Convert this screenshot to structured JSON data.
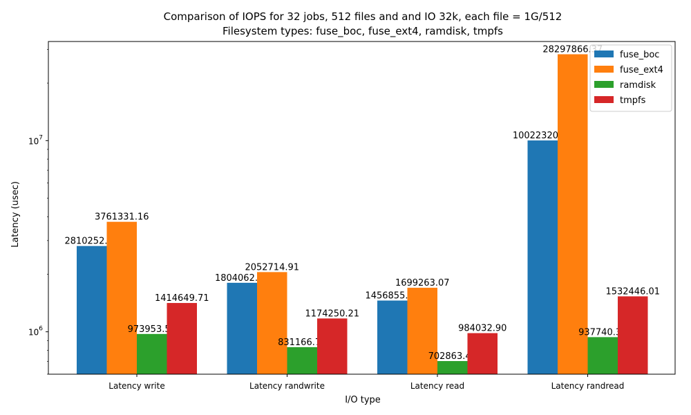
{
  "chart_data": {
    "type": "bar",
    "title": "Comparison of IOPS for 32 jobs, 512 files and  and IO 32k, each file = 1G/512",
    "subtitle": "Filesystem types: fuse_boc, fuse_ext4, ramdisk, tmpfs",
    "xlabel": "I/O type",
    "ylabel": "Latency (usec)",
    "yscale": "log",
    "ylim": [
      600000,
      33000000
    ],
    "y_tick_labels": [
      "10^6",
      "10^7"
    ],
    "grid": false,
    "legend_position": "top-right",
    "categories": [
      "Latency write",
      "Latency randwrite",
      "Latency read",
      "Latency randread"
    ],
    "series": [
      {
        "name": "fuse_boc",
        "color": "#1f77b4",
        "values": [
          2810252.43,
          1804062.43,
          1456855.61,
          10022320.74
        ],
        "labels": [
          "2810252.43",
          "1804062.43",
          "1456855.61",
          "10022320.74"
        ]
      },
      {
        "name": "fuse_ext4",
        "color": "#ff7f0e",
        "values": [
          3761331.16,
          2052714.91,
          1699263.07,
          28297866.37
        ],
        "labels": [
          "3761331.16",
          "2052714.91",
          "1699263.07",
          "28297866.37"
        ]
      },
      {
        "name": "ramdisk",
        "color": "#2ca02c",
        "values": [
          973953.55,
          831166.79,
          702863.4,
          937740.34
        ],
        "labels": [
          "973953.55",
          "831166.79",
          "702863.40",
          "937740.34"
        ]
      },
      {
        "name": "tmpfs",
        "color": "#d62728",
        "values": [
          1414649.71,
          1174250.21,
          984032.9,
          1532446.01
        ],
        "labels": [
          "1414649.71",
          "1174250.21",
          "984032.90",
          "1532446.01"
        ]
      }
    ]
  }
}
